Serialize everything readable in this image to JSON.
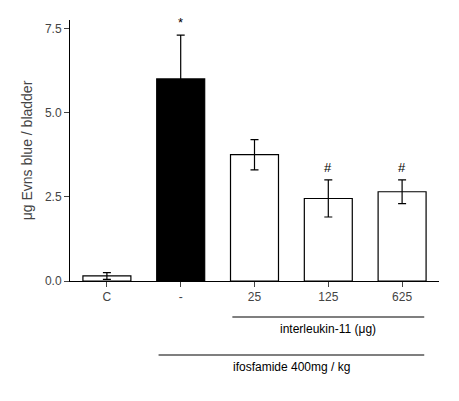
{
  "chart_data": {
    "type": "bar",
    "categories": [
      "C",
      "-",
      "25",
      "125",
      "625"
    ],
    "values": [
      0.15,
      6.0,
      3.75,
      2.45,
      2.65
    ],
    "errors": [
      0.1,
      1.3,
      0.45,
      0.55,
      0.35
    ],
    "colors": [
      "white",
      "black",
      "white",
      "white",
      "white"
    ],
    "ylabel": "μg Evns blue / bladder",
    "ylim": [
      0,
      7.75
    ],
    "yticks": [
      {
        "value": 0,
        "label": "0.0"
      },
      2.5,
      {
        "value": 5,
        "label": "5.0"
      },
      7.5
    ],
    "grid": false,
    "annotations": [
      {
        "text": "*",
        "category": "-"
      },
      {
        "text": "#",
        "category": "125"
      },
      {
        "text": "#",
        "category": "625"
      }
    ],
    "brackets": [
      {
        "label": "interleukin-11 (μg)",
        "from": "25",
        "to": "625"
      },
      {
        "label": "ifosfamide 400mg / kg",
        "from": "-",
        "to": "625"
      }
    ]
  }
}
